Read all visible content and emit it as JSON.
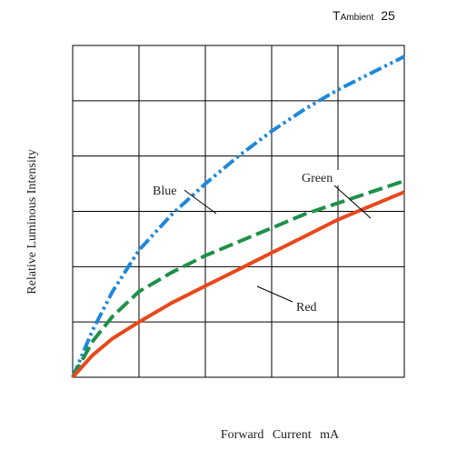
{
  "chart_data": {
    "type": "line",
    "ambient": {
      "main": "T",
      "sub": "Ambient",
      "value": "25"
    },
    "xlabel": "Forward Current mA",
    "ylabel": "Relative Luminous Intensity",
    "xlim": [
      0,
      5
    ],
    "ylim": [
      0,
      6
    ],
    "grid": true,
    "series": [
      {
        "name": "Blue",
        "color": "#1E88D8",
        "style": "dash-dot-dot",
        "x": [
          0,
          0.3,
          0.6,
          1.0,
          1.5,
          2.0,
          2.5,
          3.0,
          3.5,
          4.0,
          4.5,
          5.0
        ],
        "y": [
          0,
          0.85,
          1.55,
          2.3,
          2.95,
          3.5,
          4.0,
          4.45,
          4.85,
          5.2,
          5.5,
          5.8
        ]
      },
      {
        "name": "Green",
        "color": "#1E9148",
        "style": "dash",
        "x": [
          0,
          0.3,
          0.6,
          1.0,
          1.5,
          2.0,
          2.5,
          3.0,
          3.5,
          4.0,
          4.5,
          5.0
        ],
        "y": [
          0,
          0.65,
          1.1,
          1.55,
          1.9,
          2.2,
          2.45,
          2.7,
          2.95,
          3.15,
          3.35,
          3.55
        ]
      },
      {
        "name": "Red",
        "color": "#E8481C",
        "style": "solid",
        "x": [
          0,
          0.3,
          0.6,
          1.0,
          1.5,
          2.0,
          2.5,
          3.0,
          3.5,
          4.0,
          4.5,
          5.0
        ],
        "y": [
          0,
          0.4,
          0.7,
          1.0,
          1.35,
          1.65,
          1.95,
          2.25,
          2.55,
          2.85,
          3.1,
          3.35
        ]
      }
    ]
  }
}
